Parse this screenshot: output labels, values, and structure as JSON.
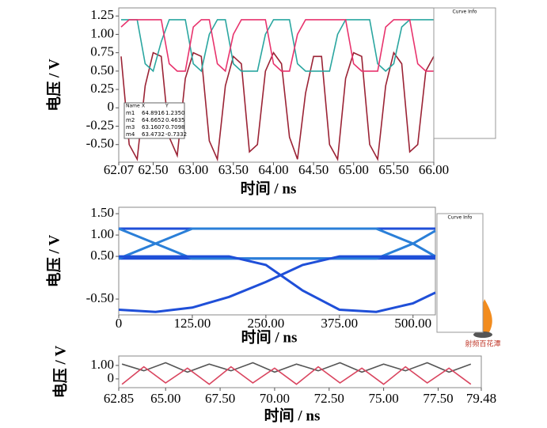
{
  "chart_data": [
    {
      "type": "line",
      "x": [
        62.1,
        62.2,
        62.3,
        62.4,
        62.5,
        62.6,
        62.7,
        62.8,
        62.9,
        63.0,
        63.1,
        63.2,
        63.3,
        63.4,
        63.5,
        63.6,
        63.7,
        63.8,
        63.9,
        64.0,
        64.1,
        64.2,
        64.3,
        64.4,
        64.5,
        64.6,
        64.7,
        64.8,
        64.9,
        65.0,
        65.1,
        65.2,
        65.3,
        65.4,
        65.5,
        65.6,
        65.7,
        65.8,
        65.9,
        66.0
      ],
      "series": [
        {
          "color": "#9b2335",
          "values": [
            0.7,
            -0.5,
            -0.7,
            0.3,
            0.75,
            0.7,
            -0.4,
            -0.65,
            0.4,
            0.75,
            0.7,
            -0.45,
            -0.7,
            0.3,
            0.7,
            0.6,
            -0.6,
            -0.5,
            0.5,
            0.75,
            0.6,
            -0.4,
            -0.7,
            0.2,
            0.7,
            0.7,
            -0.5,
            -0.7,
            0.4,
            0.75,
            0.7,
            -0.5,
            -0.7,
            0.3,
            0.75,
            0.6,
            -0.6,
            -0.5,
            0.5,
            0.7
          ]
        },
        {
          "color": "#2aa6a0",
          "values": [
            1.2,
            1.2,
            1.2,
            0.6,
            0.5,
            0.9,
            1.2,
            1.2,
            1.2,
            0.6,
            0.5,
            1.0,
            1.2,
            1.2,
            0.6,
            0.5,
            0.5,
            0.5,
            1.0,
            1.2,
            1.2,
            1.2,
            0.6,
            0.5,
            0.5,
            0.5,
            0.5,
            1.0,
            1.2,
            1.2,
            1.2,
            1.2,
            0.6,
            0.5,
            0.6,
            1.1,
            1.2,
            1.2,
            1.2,
            1.2
          ]
        },
        {
          "color": "#e8336d",
          "values": [
            1.1,
            1.2,
            1.2,
            1.2,
            1.2,
            1.2,
            0.6,
            0.5,
            0.5,
            1.1,
            1.2,
            1.2,
            0.6,
            0.5,
            1.0,
            1.2,
            1.2,
            1.2,
            1.2,
            0.6,
            0.5,
            0.5,
            1.0,
            1.2,
            1.2,
            1.2,
            1.2,
            1.2,
            1.2,
            0.6,
            0.5,
            0.5,
            0.5,
            1.1,
            1.2,
            1.2,
            1.2,
            0.6,
            0.5,
            0.5
          ]
        }
      ],
      "xlim": [
        62.07,
        66.0
      ],
      "ylim": [
        -0.74,
        1.36
      ],
      "xticks": [
        62.07,
        {
          "value": 62.5,
          "label": "62.50"
        },
        {
          "value": 63,
          "label": "63.00"
        },
        {
          "value": 63.5,
          "label": "63.50"
        },
        {
          "value": 64,
          "label": "64.00"
        },
        {
          "value": 64.5,
          "label": "64.50"
        },
        {
          "value": 65,
          "label": "65.00"
        },
        {
          "value": 65.5,
          "label": "65.50"
        },
        {
          "value": 66,
          "label": "66.00"
        }
      ],
      "yticks": [
        1.25,
        {
          "value": 1,
          "label": "1.00"
        },
        0.75,
        {
          "value": 0.5,
          "label": "0.50"
        },
        0.25,
        0,
        -0.25,
        {
          "value": -0.5,
          "label": "-0.50"
        }
      ],
      "x_label": "时间 / ns",
      "y_label": "电压 / V",
      "legend_title": "Curve Info",
      "marker_table": {
        "columns": [
          "Name",
          "X",
          "Y"
        ],
        "rows": [
          [
            "m1",
            "64.8916",
            "1.2350"
          ],
          [
            "m2",
            "64.6652",
            "0.4635"
          ],
          [
            "m3",
            "63.1607",
            "0.7098"
          ],
          [
            "m4",
            "63.4732",
            "-0.7332"
          ]
        ]
      }
    },
    {
      "type": "line",
      "x": [
        0,
        62.5,
        125,
        187.5,
        250,
        312.5,
        375,
        437.5,
        500,
        538
      ],
      "series": [
        {
          "color": "#1f4fd8",
          "values": [
            1.15,
            1.15,
            1.15,
            1.15,
            1.15,
            1.15,
            1.15,
            1.15,
            1.15,
            1.15
          ]
        },
        {
          "color": "#1f4fd8",
          "values": [
            0.45,
            0.45,
            0.45,
            0.45,
            0.45,
            0.45,
            0.45,
            0.45,
            0.45,
            0.45
          ]
        },
        {
          "color": "#2a7fd8",
          "values": [
            0.45,
            0.8,
            1.15,
            1.15,
            1.15,
            1.15,
            1.15,
            1.15,
            0.8,
            0.5
          ]
        },
        {
          "color": "#2a7fd8",
          "values": [
            1.15,
            0.8,
            0.45,
            0.45,
            0.45,
            0.45,
            0.45,
            0.45,
            0.8,
            1.1
          ]
        },
        {
          "color": "#1f4fd8",
          "values": [
            -0.75,
            -0.8,
            -0.7,
            -0.45,
            -0.1,
            0.3,
            0.5,
            0.5,
            0.5,
            0.5
          ]
        },
        {
          "color": "#1f4fd8",
          "values": [
            0.5,
            0.5,
            0.5,
            0.5,
            0.3,
            -0.3,
            -0.75,
            -0.8,
            -0.6,
            -0.35
          ]
        }
      ],
      "xlim": [
        0,
        538
      ],
      "ylim": [
        -0.87,
        1.65
      ],
      "xticks": [
        0,
        {
          "value": 125,
          "label": "125.00"
        },
        {
          "value": 250,
          "label": "250.00"
        },
        {
          "value": 375,
          "label": "375.00"
        },
        {
          "value": 500,
          "label": "500.00"
        }
      ],
      "yticks": [
        {
          "value": 1.5,
          "label": "1.50"
        },
        {
          "value": 1,
          "label": "1.00"
        },
        {
          "value": 0.5,
          "label": "0.50"
        },
        {
          "value": -0.5,
          "label": "-0.50"
        }
      ],
      "x_label": "时间 / ns",
      "y_label": "电压 / V",
      "legend_title": "Curve Info"
    },
    {
      "type": "line",
      "x": [
        63,
        64,
        65,
        66,
        67,
        68,
        69,
        70,
        71,
        72,
        73,
        74,
        75,
        76,
        77,
        78,
        79
      ],
      "series": [
        {
          "color": "#555555",
          "values": [
            1.1,
            0.6,
            1.2,
            0.5,
            1.1,
            0.6,
            1.2,
            0.5,
            1.1,
            0.6,
            1.2,
            0.5,
            1.1,
            0.6,
            1.2,
            0.5,
            1.1
          ]
        },
        {
          "color": "#d9455f",
          "values": [
            -0.4,
            0.9,
            -0.3,
            0.8,
            -0.4,
            0.9,
            -0.3,
            0.8,
            -0.4,
            0.9,
            -0.3,
            0.8,
            -0.4,
            0.9,
            -0.3,
            0.8,
            -0.4
          ]
        }
      ],
      "xlim": [
        62.85,
        79.48
      ],
      "ylim": [
        -0.65,
        1.7
      ],
      "xticks": [
        62.85,
        {
          "value": 65,
          "label": "65.00"
        },
        {
          "value": 67.5,
          "label": "67.50"
        },
        {
          "value": 70,
          "label": "70.00"
        },
        {
          "value": 72.5,
          "label": "72.50"
        },
        {
          "value": 75,
          "label": "75.00"
        },
        {
          "value": 77.5,
          "label": "77.50"
        },
        79.48
      ],
      "yticks": [
        {
          "value": 1,
          "label": "1.00"
        },
        0
      ],
      "x_label": "时间 / ns",
      "y_label": "电压 / V"
    }
  ],
  "watermark": "射频百花潭"
}
